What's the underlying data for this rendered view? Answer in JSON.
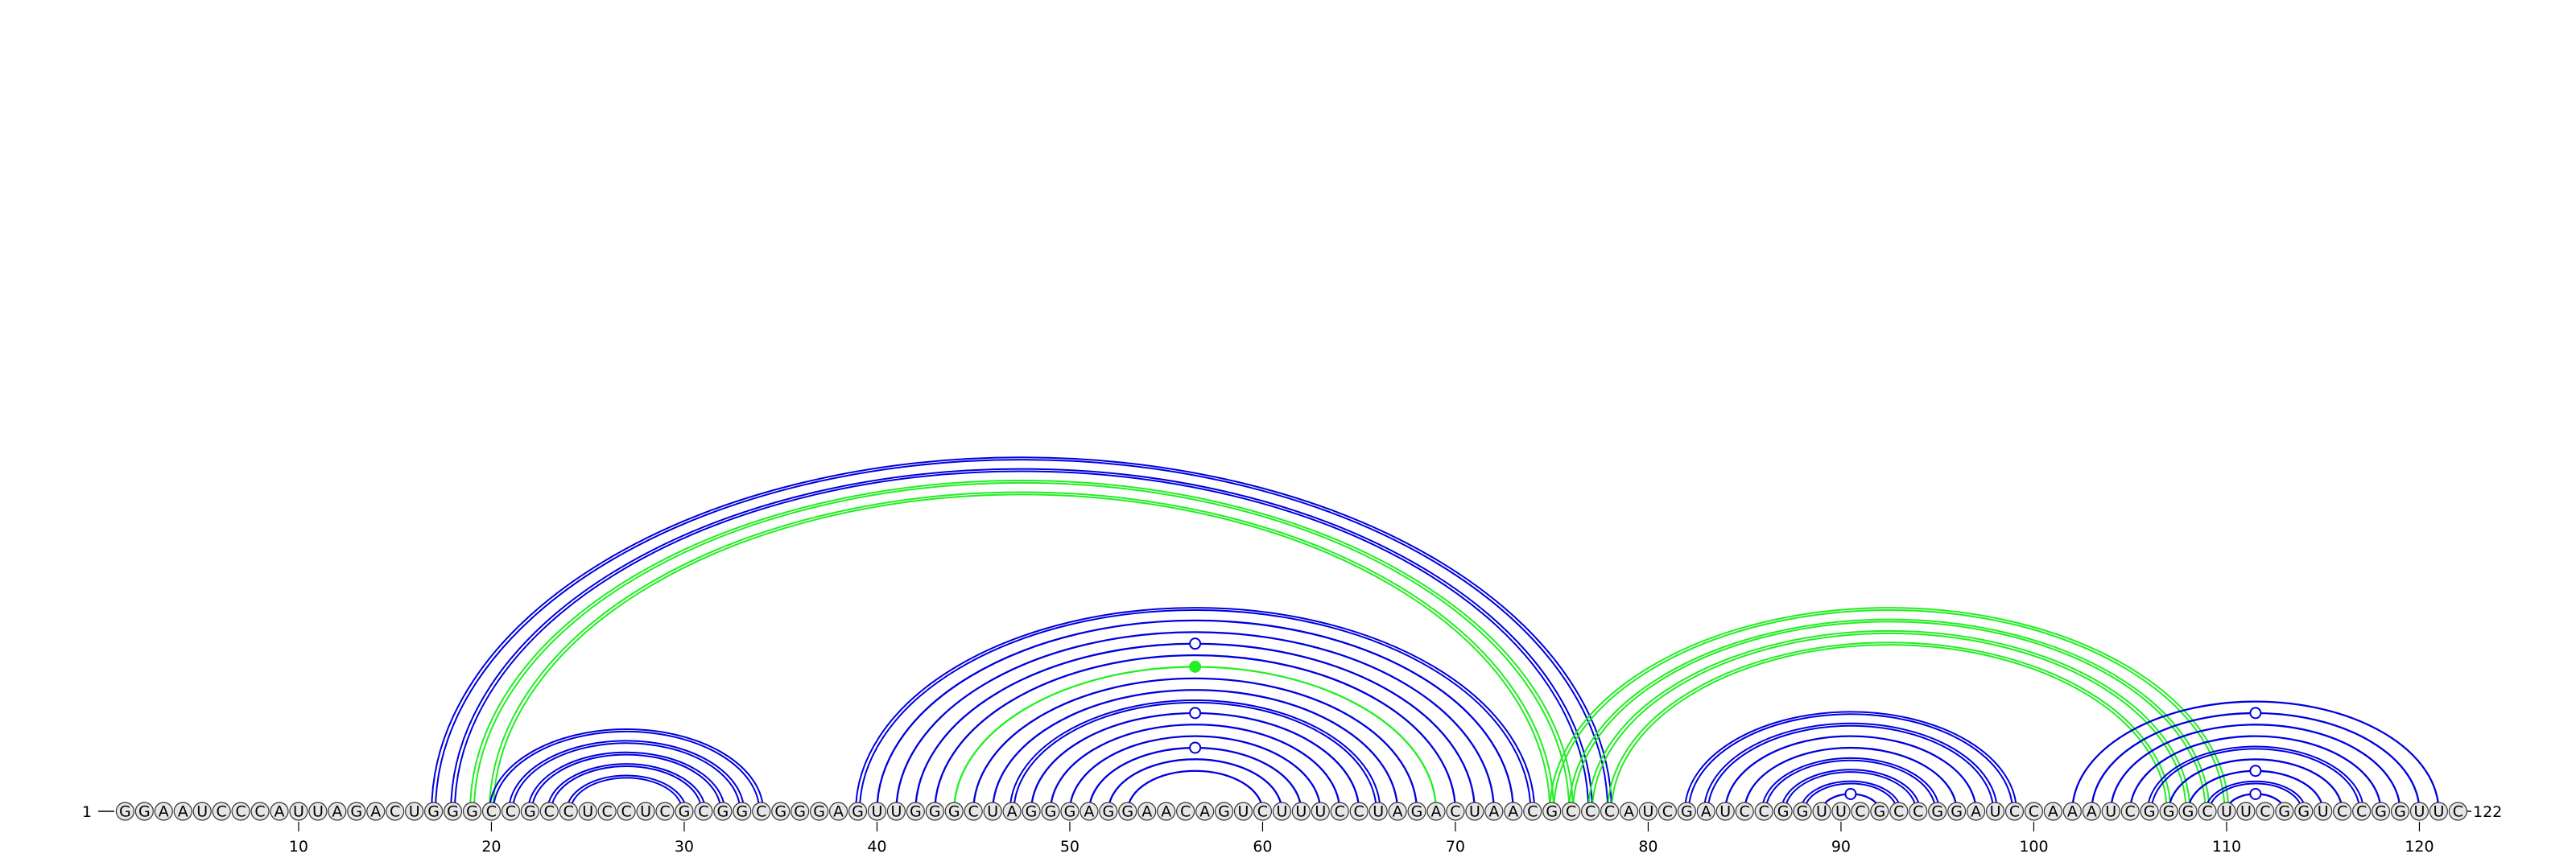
{
  "sequence": "GGAAUCCCAUUAGACUGGGCCGCCUCCUCGCGGCGGGAGUUGGGCUAGGGAGGAACAGUCUUUCCUAGACUAACGCCCAUCGAUCCGGUUCGCCGGAUCCAAAUCGGGCUUCGGUCCGGUUC",
  "start_label": "1",
  "end_label": "122",
  "ticks": [
    {
      "pos": 10,
      "label": "10"
    },
    {
      "pos": 20,
      "label": "20"
    },
    {
      "pos": 30,
      "label": "30"
    },
    {
      "pos": 40,
      "label": "40"
    },
    {
      "pos": 50,
      "label": "50"
    },
    {
      "pos": 60,
      "label": "60"
    },
    {
      "pos": 70,
      "label": "70"
    },
    {
      "pos": 80,
      "label": "80"
    },
    {
      "pos": 90,
      "label": "90"
    },
    {
      "pos": 100,
      "label": "100"
    },
    {
      "pos": 110,
      "label": "110"
    },
    {
      "pos": 120,
      "label": "120"
    }
  ],
  "colors": {
    "blue": "#0000dd",
    "green": "#22ee22",
    "nucleotide_fill": "#e6e6e6",
    "nucleotide_stroke": "#333333"
  },
  "arcs": [
    {
      "i": 17,
      "j": 78,
      "color": "blue",
      "style": "double"
    },
    {
      "i": 18,
      "j": 77,
      "color": "blue",
      "style": "double"
    },
    {
      "i": 19,
      "j": 76,
      "color": "green",
      "style": "double"
    },
    {
      "i": 20,
      "j": 75,
      "color": "green",
      "style": "double"
    },
    {
      "i": 20,
      "j": 34,
      "color": "blue",
      "style": "double"
    },
    {
      "i": 21,
      "j": 33,
      "color": "blue",
      "style": "double"
    },
    {
      "i": 22,
      "j": 32,
      "color": "blue",
      "style": "double"
    },
    {
      "i": 23,
      "j": 31,
      "color": "blue",
      "style": "double"
    },
    {
      "i": 24,
      "j": 30,
      "color": "blue",
      "style": "double"
    },
    {
      "i": 39,
      "j": 74,
      "color": "blue",
      "style": "double"
    },
    {
      "i": 40,
      "j": 73,
      "color": "blue",
      "style": "single"
    },
    {
      "i": 41,
      "j": 72,
      "color": "blue",
      "style": "single"
    },
    {
      "i": 42,
      "j": 71,
      "color": "blue",
      "style": "single",
      "marker": "open"
    },
    {
      "i": 43,
      "j": 70,
      "color": "blue",
      "style": "single"
    },
    {
      "i": 44,
      "j": 69,
      "color": "green",
      "style": "single",
      "marker": "filled"
    },
    {
      "i": 45,
      "j": 68,
      "color": "blue",
      "style": "single"
    },
    {
      "i": 46,
      "j": 67,
      "color": "blue",
      "style": "single"
    },
    {
      "i": 47,
      "j": 66,
      "color": "blue",
      "style": "double"
    },
    {
      "i": 48,
      "j": 65,
      "color": "blue",
      "style": "single",
      "marker": "open"
    },
    {
      "i": 49,
      "j": 64,
      "color": "blue",
      "style": "single"
    },
    {
      "i": 50,
      "j": 63,
      "color": "blue",
      "style": "single"
    },
    {
      "i": 51,
      "j": 62,
      "color": "blue",
      "style": "single",
      "marker": "open"
    },
    {
      "i": 52,
      "j": 61,
      "color": "blue",
      "style": "single"
    },
    {
      "i": 53,
      "j": 60,
      "color": "blue",
      "style": "single"
    },
    {
      "i": 75,
      "j": 110,
      "color": "green",
      "style": "double"
    },
    {
      "i": 76,
      "j": 109,
      "color": "green",
      "style": "double"
    },
    {
      "i": 77,
      "j": 108,
      "color": "green",
      "style": "double"
    },
    {
      "i": 78,
      "j": 107,
      "color": "green",
      "style": "double"
    },
    {
      "i": 82,
      "j": 99,
      "color": "blue",
      "style": "double"
    },
    {
      "i": 83,
      "j": 98,
      "color": "blue",
      "style": "double"
    },
    {
      "i": 84,
      "j": 97,
      "color": "blue",
      "style": "single"
    },
    {
      "i": 85,
      "j": 96,
      "color": "blue",
      "style": "single"
    },
    {
      "i": 86,
      "j": 95,
      "color": "blue",
      "style": "double"
    },
    {
      "i": 87,
      "j": 94,
      "color": "blue",
      "style": "double"
    },
    {
      "i": 88,
      "j": 93,
      "color": "blue",
      "style": "double"
    },
    {
      "i": 89,
      "j": 92,
      "color": "blue",
      "style": "single",
      "marker": "open"
    },
    {
      "i": 102,
      "j": 121,
      "color": "blue",
      "style": "single"
    },
    {
      "i": 103,
      "j": 120,
      "color": "blue",
      "style": "single",
      "marker": "open"
    },
    {
      "i": 104,
      "j": 119,
      "color": "blue",
      "style": "single"
    },
    {
      "i": 105,
      "j": 118,
      "color": "blue",
      "style": "single"
    },
    {
      "i": 106,
      "j": 117,
      "color": "blue",
      "style": "double"
    },
    {
      "i": 107,
      "j": 116,
      "color": "blue",
      "style": "single"
    },
    {
      "i": 108,
      "j": 115,
      "color": "blue",
      "style": "single",
      "marker": "open"
    },
    {
      "i": 109,
      "j": 114,
      "color": "blue",
      "style": "double"
    },
    {
      "i": 110,
      "j": 113,
      "color": "blue",
      "style": "single",
      "marker": "open"
    }
  ]
}
